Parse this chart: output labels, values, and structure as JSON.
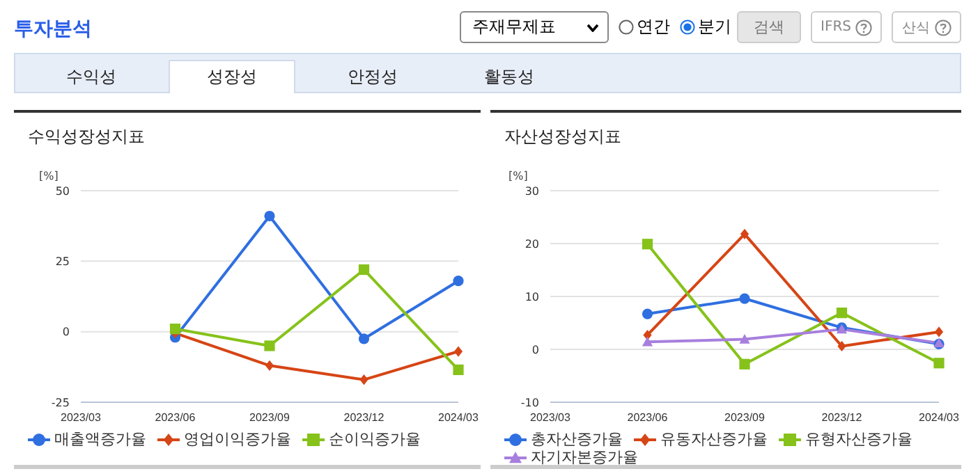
{
  "chart_data": [
    {
      "type": "other",
      "title": "투자분석",
      "annotations": [
        "주재무제표",
        "연간",
        "분기",
        "검색",
        "IFRS",
        "산식",
        "수익성",
        "성장성",
        "안정성",
        "활동성"
      ]
    },
    {
      "type": "line",
      "title": "수익성장성지표",
      "ylabel": "[%]",
      "categories": [
        "2023/03",
        "2023/06",
        "2023/09",
        "2023/12",
        "2024/03"
      ],
      "ylim": [
        -25,
        50
      ],
      "yticks": [
        -25,
        0,
        25,
        50
      ],
      "grid": "y",
      "legend": "bottom",
      "series": [
        {
          "name": "매출액증가율",
          "color": "#2f6fe0",
          "marker": "circle",
          "values": [
            null,
            -2,
            41,
            -2.5,
            18
          ]
        },
        {
          "name": "영업이익증가율",
          "color": "#d64515",
          "marker": "diamond",
          "values": [
            null,
            -0.5,
            -12,
            -17,
            -7
          ]
        },
        {
          "name": "순이익증가율",
          "color": "#86c21a",
          "marker": "square",
          "values": [
            null,
            1,
            -5,
            22,
            -13.5
          ]
        }
      ]
    },
    {
      "type": "line",
      "title": "자산성장성지표",
      "ylabel": "[%]",
      "categories": [
        "2023/03",
        "2023/06",
        "2023/09",
        "2023/12",
        "2024/03"
      ],
      "ylim": [
        -10,
        30
      ],
      "yticks": [
        -10,
        0,
        10,
        20,
        30
      ],
      "grid": "y",
      "legend": "bottom",
      "series": [
        {
          "name": "총자산증가율",
          "color": "#2f6fe0",
          "marker": "circle",
          "values": [
            null,
            6.7,
            9.6,
            4.1,
            1
          ]
        },
        {
          "name": "유동자산증가율",
          "color": "#d64515",
          "marker": "diamond",
          "values": [
            null,
            2.7,
            21.8,
            0.6,
            3.3
          ]
        },
        {
          "name": "유형자산증가율",
          "color": "#86c21a",
          "marker": "square",
          "values": [
            null,
            19.9,
            -2.8,
            6.9,
            -2.6
          ]
        },
        {
          "name": "자기자본증가율",
          "color": "#a77fdd",
          "marker": "triangle",
          "values": [
            null,
            1.4,
            1.9,
            3.8,
            1.2
          ]
        }
      ]
    }
  ]
}
